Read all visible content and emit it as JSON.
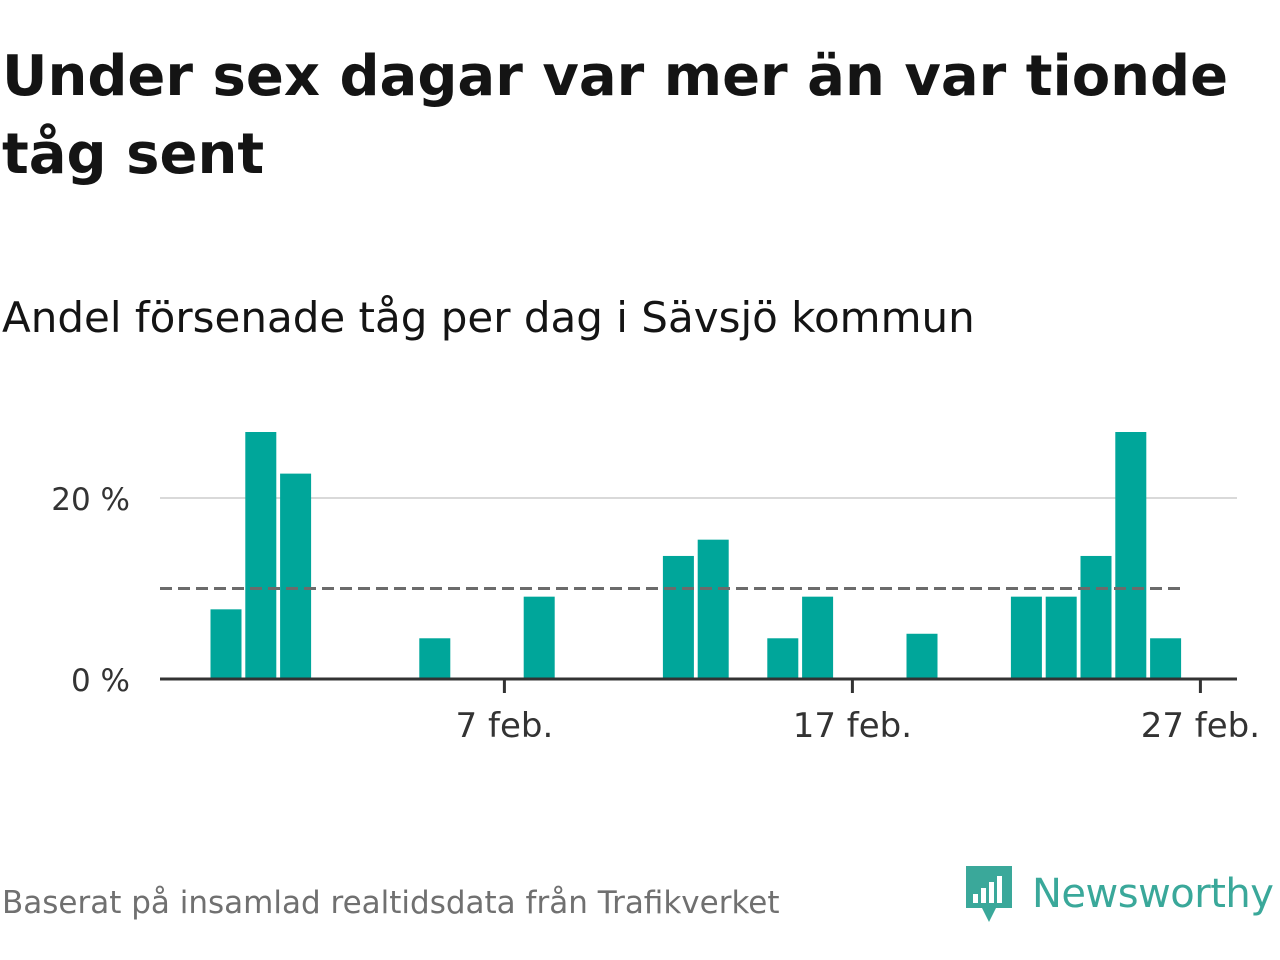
{
  "title": "Under sex dagar var mer än var tionde tåg sent",
  "subtitle": "Andel försenade tåg per dag i Sävsjö kommun",
  "footer": "Baserat på insamlad realtidsdata från Trafikverket",
  "brand": "Newsworthy",
  "colors": {
    "bar": "#00a69a",
    "reference_line": "#6b6b6b",
    "grid": "#d9d9d9",
    "axis": "#333333",
    "brand": "#3aa89a"
  },
  "chart_data": {
    "type": "bar",
    "x_type": "date",
    "month": "feb.",
    "x": [
      "2024-01-30",
      "2024-01-31",
      "2024-02-01",
      "2024-02-02",
      "2024-02-03",
      "2024-02-04",
      "2024-02-05",
      "2024-02-06",
      "2024-02-07",
      "2024-02-08",
      "2024-02-09",
      "2024-02-10",
      "2024-02-11",
      "2024-02-12",
      "2024-02-13",
      "2024-02-14",
      "2024-02-15",
      "2024-02-16",
      "2024-02-17",
      "2024-02-18",
      "2024-02-19",
      "2024-02-20",
      "2024-02-21",
      "2024-02-22",
      "2024-02-23",
      "2024-02-24",
      "2024-02-25",
      "2024-02-26",
      "2024-02-27",
      "2024-02-28"
    ],
    "values": [
      7.7,
      27.3,
      22.7,
      0,
      0,
      0,
      4.5,
      0,
      0,
      9.1,
      0,
      0,
      0,
      13.6,
      15.4,
      0,
      4.5,
      9.1,
      0,
      0,
      5.0,
      0,
      0,
      9.1,
      9.1,
      13.6,
      27.3,
      4.5,
      0,
      0
    ],
    "ylim": [
      0,
      27.3
    ],
    "yticks": [
      0,
      20
    ],
    "ytick_labels": [
      "0 %",
      "20 %"
    ],
    "xticks": [
      "2024-02-07",
      "2024-02-17",
      "2024-02-27"
    ],
    "xtick_labels": [
      "7 feb.",
      "17 feb.",
      "27 feb."
    ],
    "reference_line": 10,
    "grid": true
  }
}
